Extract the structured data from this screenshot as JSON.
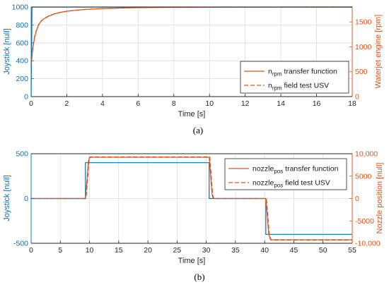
{
  "colors": {
    "left_axis": "#0072BD",
    "right_axis": "#D95319",
    "grid": "#dcdcdc"
  },
  "chart_data": [
    {
      "type": "line",
      "panel_label": "(a)",
      "xlabel": "Time [s]",
      "ylabel_left": "Joystick [null]",
      "ylabel_right": "Waterjet engine [rpm]",
      "xlim": [
        0,
        18
      ],
      "ylim_left": [
        0,
        1000
      ],
      "ylim_right": [
        0,
        1800
      ],
      "xticks": [
        0,
        2,
        4,
        6,
        8,
        10,
        12,
        14,
        16,
        18
      ],
      "yticks_left": [
        0,
        200,
        400,
        600,
        800,
        1000
      ],
      "yticks_right": [
        0,
        500,
        1000,
        1500
      ],
      "grid": true,
      "legend_position": "bottom-right",
      "series": [
        {
          "axis": "left",
          "legend": false,
          "style": "solid",
          "color": "#0072BD",
          "x": [
            0,
            0.05,
            18
          ],
          "y": [
            0,
            1000,
            1000
          ]
        },
        {
          "axis": "right",
          "legend": true,
          "style": "solid",
          "color": "#D95319",
          "label_main": "n",
          "label_sub": "rpm",
          "label_rest": " transfer function",
          "x": [
            0,
            0.1,
            0.2,
            0.3,
            0.4,
            0.5,
            0.7,
            1.0,
            1.3,
            1.6,
            2.0,
            2.5,
            3.0,
            4.0,
            5.0,
            6.0,
            8.0,
            10.0,
            18.0
          ],
          "y": [
            630,
            980,
            1200,
            1330,
            1420,
            1490,
            1560,
            1620,
            1660,
            1690,
            1715,
            1735,
            1750,
            1770,
            1780,
            1788,
            1795,
            1798,
            1800
          ]
        },
        {
          "axis": "right",
          "legend": true,
          "style": "dashed",
          "color": "#D95319",
          "label_main": "n",
          "label_sub": "rpm",
          "label_rest": " field test USV",
          "x": [
            0,
            0.1,
            0.2,
            0.3,
            0.4,
            0.5,
            0.7,
            1.0,
            1.3,
            1.6,
            2.0,
            2.5,
            3.0,
            4.0,
            5.0,
            6.0,
            8.0,
            10.0,
            18.0
          ],
          "y": [
            640,
            1000,
            1220,
            1340,
            1430,
            1500,
            1565,
            1625,
            1665,
            1693,
            1718,
            1737,
            1752,
            1771,
            1781,
            1789,
            1796,
            1799,
            1800
          ]
        }
      ]
    },
    {
      "type": "line",
      "panel_label": "(b)",
      "xlabel": "Time [s]",
      "ylabel_left": "Joystick [null]",
      "ylabel_right": "Nozzle position [null]",
      "xlim": [
        0,
        55
      ],
      "ylim_left": [
        -500,
        500
      ],
      "ylim_right": [
        -10000,
        10000
      ],
      "xticks": [
        0,
        5,
        10,
        15,
        20,
        25,
        30,
        35,
        40,
        45,
        50,
        55
      ],
      "yticks_left": [
        -500,
        0,
        500
      ],
      "yticks_right": [
        -5000,
        0,
        5000
      ],
      "yticks_right_labels": [
        "-10,000",
        "-5000",
        "0",
        "5000",
        "10,000"
      ],
      "yticks_right_values": [
        -10000,
        -5000,
        0,
        5000,
        10000
      ],
      "grid": true,
      "legend_position": "top-right",
      "series": [
        {
          "axis": "left",
          "legend": false,
          "style": "solid",
          "color": "#0072BD",
          "x": [
            0,
            9.3,
            9.3,
            30.5,
            30.5,
            40.2,
            40.2,
            55
          ],
          "y": [
            0,
            0,
            400,
            400,
            0,
            0,
            -400,
            -400
          ]
        },
        {
          "axis": "right",
          "legend": true,
          "style": "solid",
          "color": "#D95319",
          "label_main": "nozzle",
          "label_sub": "pos",
          "label_rest": " transfer function",
          "x": [
            0,
            9.3,
            9.5,
            9.8,
            10.0,
            30.5,
            30.7,
            31.0,
            31.2,
            40.2,
            40.4,
            40.7,
            41.0,
            55
          ],
          "y": [
            0,
            0,
            3000,
            8200,
            9200,
            9200,
            6000,
            800,
            0,
            0,
            -3000,
            -8000,
            -9200,
            -9200
          ]
        },
        {
          "axis": "right",
          "legend": true,
          "style": "dashed",
          "color": "#D95319",
          "label_main": "nozzle",
          "label_sub": "pos",
          "label_rest": " field test USV",
          "x": [
            0,
            9.4,
            9.6,
            9.9,
            10.1,
            30.6,
            30.8,
            31.1,
            31.3,
            40.3,
            40.5,
            40.8,
            41.1,
            55
          ],
          "y": [
            0,
            0,
            3000,
            8200,
            9300,
            9300,
            6000,
            800,
            0,
            0,
            -3000,
            -8000,
            -9300,
            -9300
          ]
        }
      ]
    }
  ]
}
